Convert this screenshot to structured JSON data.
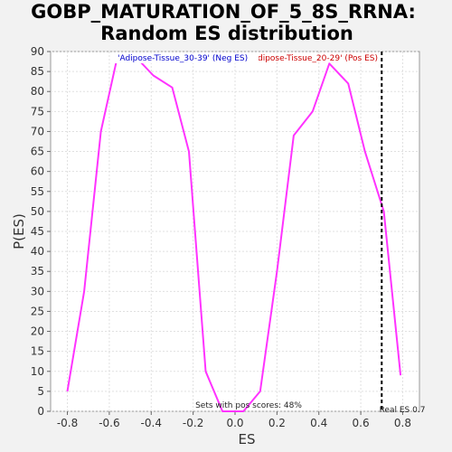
{
  "chart_data": {
    "type": "line",
    "title_lines": [
      "GOBP_MATURATION_OF_5_8S_RRNA:",
      "Random ES distribution"
    ],
    "xlabel": "ES",
    "ylabel": "P(ES)",
    "xlim": [
      -0.88,
      0.88
    ],
    "ylim": [
      0,
      90
    ],
    "x_ticks": [
      -0.8,
      -0.6,
      -0.4,
      -0.2,
      0.0,
      0.2,
      0.4,
      0.6,
      0.8
    ],
    "x_tick_labels": [
      "-0.8",
      "-0.6",
      "-0.4",
      "-0.2",
      "0.0",
      "0.2",
      "0.4",
      "0.6",
      "0.8"
    ],
    "y_ticks": [
      0,
      5,
      10,
      15,
      20,
      25,
      30,
      35,
      40,
      45,
      50,
      55,
      60,
      65,
      70,
      75,
      80,
      85,
      90
    ],
    "grid": true,
    "series": [
      {
        "color": "#ff33ff",
        "x": [
          -0.8,
          -0.72,
          -0.64,
          -0.56,
          -0.48,
          -0.39,
          -0.3,
          -0.22,
          -0.14,
          -0.06,
          0.04,
          0.12,
          0.2,
          0.28,
          0.37,
          0.45,
          0.54,
          0.62,
          0.71,
          0.79
        ],
        "y": [
          5,
          30,
          70,
          89,
          89,
          84,
          81,
          65,
          10,
          0,
          0,
          5,
          35,
          69,
          75,
          87,
          82,
          65,
          50,
          9
        ]
      }
    ],
    "real_es": {
      "x": 0.7,
      "label": "Real ES 0.7"
    },
    "legend": [
      {
        "text": "'Adipose-Tissue_30-39' (Neg ES)",
        "color": "#0000cc"
      },
      {
        "text": "'Adipose-Tissue_20-29' (Pos ES)",
        "color": "#cc0000"
      }
    ],
    "annotation": "Sets with pos scores: 48%"
  }
}
